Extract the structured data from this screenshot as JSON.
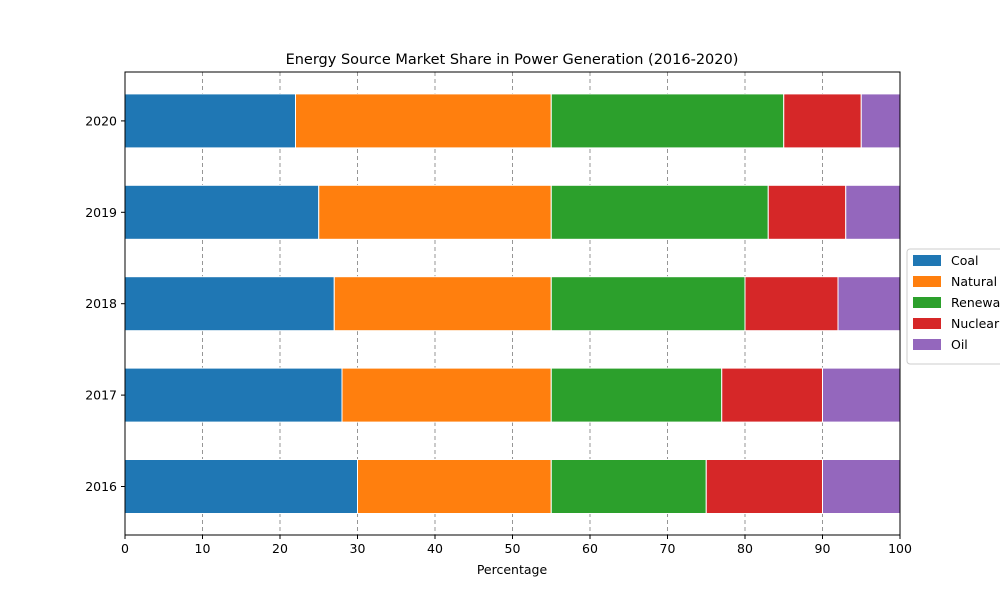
{
  "chart_data": {
    "type": "bar",
    "orientation": "horizontal",
    "stacked": true,
    "title": "Energy Source Market Share in Power Generation (2016-2020)",
    "xlabel": "Percentage",
    "ylabel": "",
    "xlim": [
      0,
      100
    ],
    "xticks": [
      0,
      10,
      20,
      30,
      40,
      50,
      60,
      70,
      80,
      90,
      100
    ],
    "grid": "vertical dashed",
    "legend_position": "right",
    "categories": [
      "2016",
      "2017",
      "2018",
      "2019",
      "2020"
    ],
    "series": [
      {
        "name": "Coal",
        "color": "#1f77b4",
        "values": [
          30,
          28,
          27,
          25,
          22
        ]
      },
      {
        "name": "Natural Gas",
        "color": "#ff7f0e",
        "values": [
          25,
          27,
          28,
          30,
          33
        ]
      },
      {
        "name": "Renewables",
        "color": "#2ca02c",
        "values": [
          20,
          22,
          25,
          28,
          30
        ]
      },
      {
        "name": "Nuclear",
        "color": "#d62728",
        "values": [
          15,
          13,
          12,
          10,
          10
        ]
      },
      {
        "name": "Oil",
        "color": "#9467bd",
        "values": [
          10,
          10,
          8,
          7,
          5
        ]
      }
    ]
  }
}
